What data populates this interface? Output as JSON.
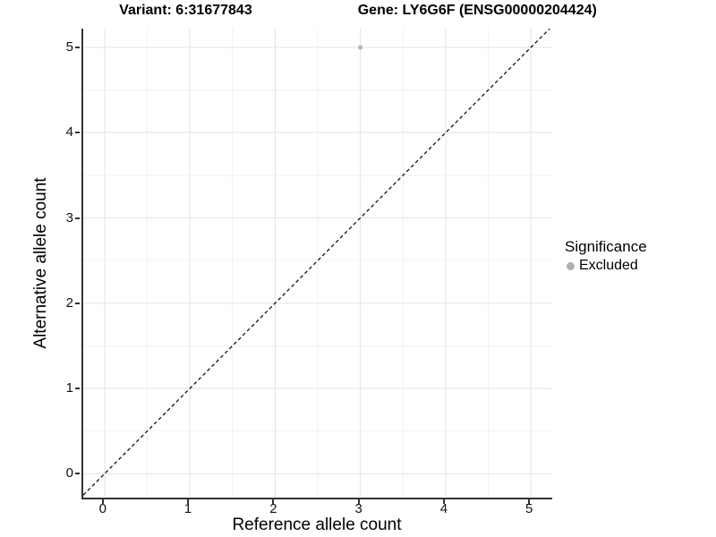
{
  "title": {
    "variant_label": "Variant: 6:31677843",
    "gene_label": "Gene: LY6G6F (ENSG00000204424)"
  },
  "axes": {
    "x_label": "Reference allele count",
    "y_label": "Alternative allele count"
  },
  "legend": {
    "title": "Significance",
    "items": [
      {
        "label": "Excluded",
        "color": "#b0b0b0"
      }
    ]
  },
  "colors": {
    "grid_major": "#e3e3e3",
    "grid_minor": "#f1f1f1",
    "axis_line": "#333333",
    "reference_line": "#000000",
    "point": "#b5b5b5"
  },
  "chart_data": {
    "type": "scatter",
    "title": "Variant: 6:31677843 — Gene: LY6G6F (ENSG00000204424)",
    "xlabel": "Reference allele count",
    "ylabel": "Alternative allele count",
    "xlim": [
      -0.25,
      5.25
    ],
    "ylim": [
      -0.28,
      5.22
    ],
    "x_ticks": [
      0,
      1,
      2,
      3,
      4,
      5
    ],
    "y_ticks": [
      0,
      1,
      2,
      3,
      4,
      5
    ],
    "grid": "major and minor gridlines, light grey on white",
    "legend_position": "right",
    "reference_line": {
      "equation": "y = x",
      "style": "dashed",
      "color": "#000000"
    },
    "series": [
      {
        "name": "Excluded",
        "color": "#b5b5b5",
        "points": [
          {
            "x": 3,
            "y": 5
          }
        ]
      }
    ]
  }
}
